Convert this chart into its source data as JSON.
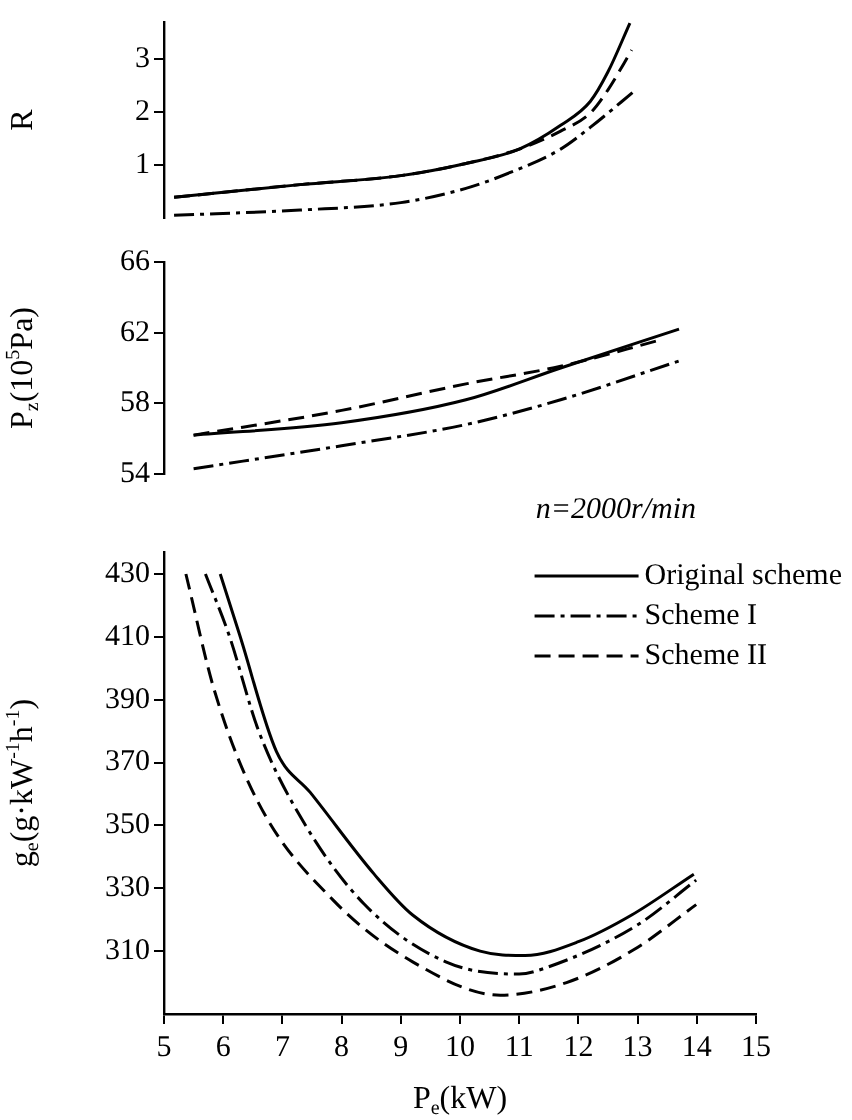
{
  "chart_data": [
    {
      "type": "line",
      "ylabel": "R",
      "xlim": [
        5,
        15
      ],
      "ylim": [
        0,
        3.7
      ],
      "yticks": [
        1,
        2,
        3
      ],
      "tick_labels": "y",
      "marker": "none",
      "legend": false,
      "series": [
        {
          "color": "#000000",
          "line_style": "solid",
          "x": [
            5.17,
            7.3,
            9.0,
            10.1,
            11.0,
            11.7,
            12.2,
            12.5,
            12.87
          ],
          "values": [
            0.39,
            0.63,
            0.8,
            1.03,
            1.3,
            1.75,
            2.2,
            2.76,
            3.68
          ]
        },
        {
          "color": "#000000",
          "line_style": "dotted",
          "x": [
            5.17,
            7.3,
            9.0,
            10.1,
            10.85,
            11.7,
            12.2,
            12.97
          ],
          "values": [
            0.05,
            0.15,
            0.29,
            0.56,
            0.86,
            1.3,
            1.71,
            2.42
          ]
        },
        {
          "color": "#000000",
          "line_style": "dashed",
          "x": [
            5.17,
            7.3,
            9.0,
            10.1,
            11.0,
            11.7,
            12.2,
            12.5,
            12.9
          ],
          "values": [
            0.39,
            0.63,
            0.8,
            1.03,
            1.3,
            1.64,
            1.98,
            2.42,
            3.17
          ]
        }
      ]
    },
    {
      "type": "line",
      "ylabel": "P$_{z}$(10$^{5}$Pa)",
      "xlim": [
        5,
        15
      ],
      "ylim": [
        54,
        66
      ],
      "yticks": [
        54,
        58,
        62,
        66
      ],
      "tick_labels": "y",
      "marker": "none",
      "legend": false,
      "annotations": [
        "n=2000r/min"
      ],
      "series": [
        {
          "color": "#000000",
          "line_style": "solid",
          "x": [
            5.5,
            8.0,
            10.1,
            11.7,
            13.7
          ],
          "values": [
            56.2,
            56.9,
            58.2,
            60.0,
            62.2
          ]
        },
        {
          "color": "#000000",
          "line_style": "dotted",
          "x": [
            5.5,
            8.0,
            10.1,
            11.7,
            13.7
          ],
          "values": [
            54.3,
            55.6,
            56.8,
            58.2,
            60.4
          ]
        },
        {
          "color": "#000000",
          "line_style": "dashed",
          "x": [
            5.5,
            8.0,
            10.1,
            11.7,
            13.4
          ],
          "values": [
            56.2,
            57.6,
            59.1,
            60.1,
            61.6
          ]
        }
      ]
    },
    {
      "type": "line",
      "xlabel": "P$_{e}$(kW)",
      "ylabel": "g$_{e}$(g·kW$^{-1}$h$^{-1}$)",
      "xlim": [
        5,
        15
      ],
      "xticks": [
        5,
        6,
        7,
        8,
        9,
        10,
        11,
        12,
        13,
        14,
        15
      ],
      "ylim": [
        290,
        437
      ],
      "yticks": [
        310,
        330,
        350,
        370,
        390,
        410,
        430
      ],
      "marker": "none",
      "legend": "top right",
      "series": [
        {
          "name": "Original scheme",
          "color": "#000000",
          "line_style": "solid",
          "x": [
            5.95,
            6.28,
            6.9,
            7.47,
            8.55,
            9.2,
            10.34,
            11.1,
            12.0,
            12.9,
            13.95
          ],
          "values": [
            430,
            410.5,
            373.5,
            360.5,
            334.5,
            321.5,
            310,
            308.6,
            313,
            321.5,
            334.5
          ]
        },
        {
          "name": "Scheme I",
          "color": "#000000",
          "line_style": "dotted",
          "x": [
            5.7,
            6.1,
            6.6,
            7.36,
            8.38,
            9.76,
            11.0,
            11.45,
            12.97,
            13.99
          ],
          "values": [
            430,
            410.5,
            380,
            351,
            325,
            306.6,
            302.7,
            304.7,
            318,
            332.6
          ]
        },
        {
          "name": "Scheme II",
          "color": "#000000",
          "line_style": "dashed",
          "x": [
            5.37,
            5.85,
            6.6,
            7.87,
            9.2,
            10.68,
            11.8,
            12.94,
            13.99
          ],
          "values": [
            430,
            393,
            357,
            326,
            306.6,
            296,
            300,
            310.5,
            324.8
          ]
        }
      ]
    }
  ]
}
